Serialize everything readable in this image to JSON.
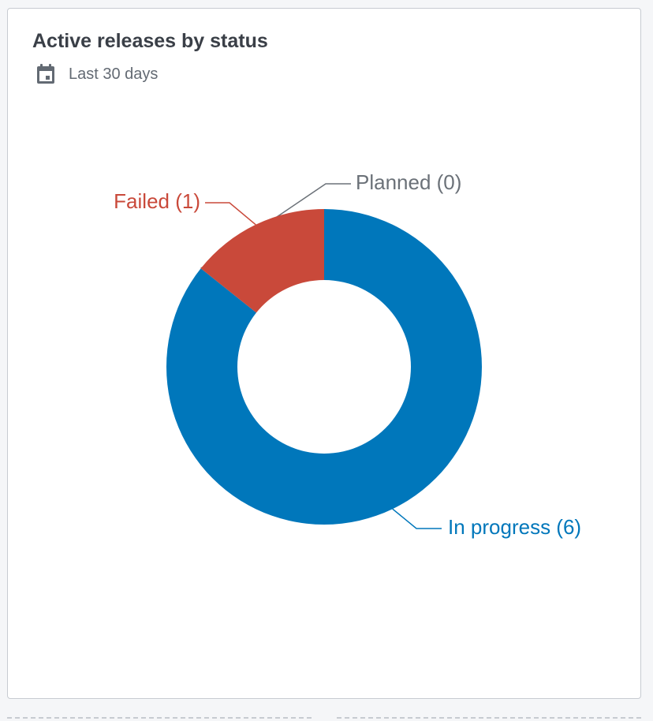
{
  "widget": {
    "title": "Active releases by status",
    "date_range": "Last 30 days",
    "date_icon": "calendar-icon"
  },
  "chart_data": {
    "type": "pie",
    "variant": "donut",
    "title": "Active releases by status",
    "slices": [
      {
        "name": "In progress",
        "value": 6,
        "label": "In progress (6)",
        "color": "#0077bb"
      },
      {
        "name": "Planned",
        "value": 0,
        "label": "Planned (0)",
        "color": "#6b7178"
      },
      {
        "name": "Failed",
        "value": 1,
        "label": "Failed (1)",
        "color": "#c9493a"
      }
    ]
  }
}
